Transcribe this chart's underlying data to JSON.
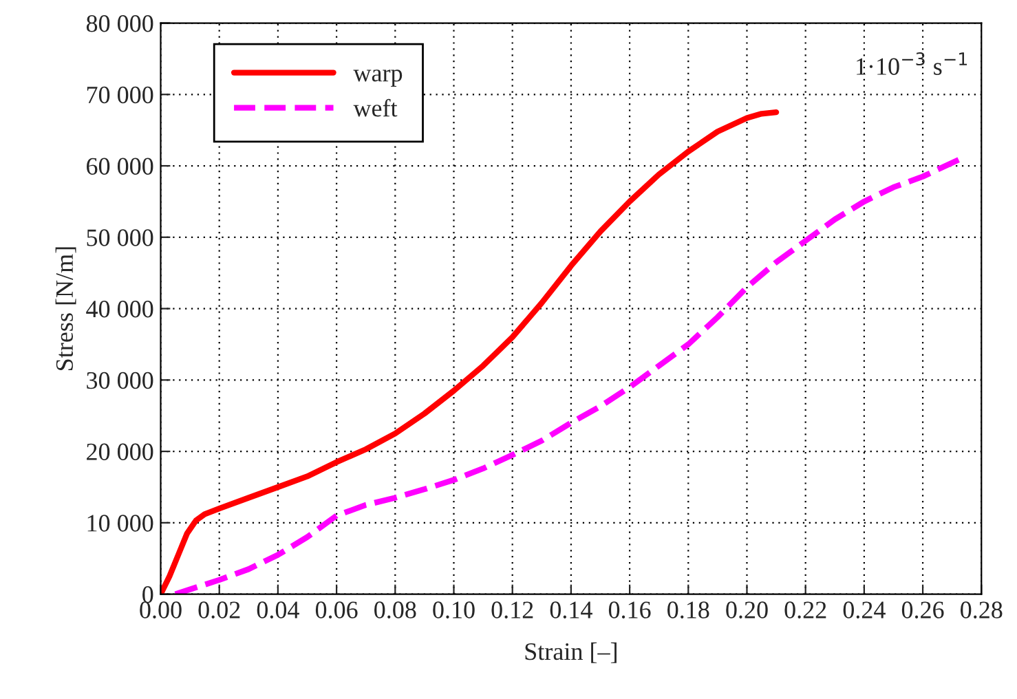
{
  "chart_data": {
    "type": "line",
    "xlabel": "Strain [–]",
    "ylabel": "Stress [N/m]",
    "annotations": [
      "1·10$^{−3}$ s$^{−1}$"
    ],
    "series": [
      {
        "name": "warp",
        "color": "#ff0000",
        "line_style": "solid",
        "x": [
          0,
          0.003,
          0.006,
          0.009,
          0.012,
          0.015,
          0.02,
          0.03,
          0.04,
          0.05,
          0.06,
          0.07,
          0.08,
          0.09,
          0.1,
          0.11,
          0.12,
          0.13,
          0.14,
          0.15,
          0.16,
          0.17,
          0.18,
          0.19,
          0.2,
          0.205,
          0.21
        ],
        "values": [
          0,
          2500,
          5500,
          8500,
          10300,
          11200,
          12000,
          13500,
          15000,
          16500,
          18500,
          20300,
          22500,
          25300,
          28500,
          32000,
          36000,
          40800,
          46000,
          50800,
          55000,
          58800,
          62000,
          64800,
          66700,
          67300,
          67500
        ]
      },
      {
        "name": "weft",
        "color": "#ff00ff",
        "line_style": "dashed",
        "x": [
          0.005,
          0.02,
          0.03,
          0.04,
          0.05,
          0.06,
          0.07,
          0.08,
          0.09,
          0.1,
          0.11,
          0.12,
          0.13,
          0.14,
          0.15,
          0.16,
          0.17,
          0.18,
          0.19,
          0.2,
          0.21,
          0.22,
          0.23,
          0.24,
          0.25,
          0.26,
          0.273
        ],
        "values": [
          0,
          2000,
          3500,
          5500,
          8000,
          11000,
          12500,
          13500,
          14700,
          16000,
          17600,
          19500,
          21500,
          24000,
          26300,
          29000,
          32000,
          35000,
          38800,
          43000,
          46500,
          49500,
          52500,
          55000,
          57000,
          58500,
          61000
        ]
      }
    ],
    "xlim": [
      0,
      0.28
    ],
    "ylim": [
      0,
      80000
    ],
    "xticks": [
      {
        "value": 0,
        "label": "0.00"
      },
      {
        "value": 0.02,
        "label": "0.02"
      },
      {
        "value": 0.04,
        "label": "0.04"
      },
      {
        "value": 0.06,
        "label": "0.06"
      },
      {
        "value": 0.08,
        "label": "0.08"
      },
      {
        "value": 0.1,
        "label": "0.10"
      },
      {
        "value": 0.12,
        "label": "0.12"
      },
      {
        "value": 0.14,
        "label": "0.14"
      },
      {
        "value": 0.16,
        "label": "0.16"
      },
      {
        "value": 0.18,
        "label": "0.18"
      },
      {
        "value": 0.2,
        "label": "0.20"
      },
      {
        "value": 0.22,
        "label": "0.22"
      },
      {
        "value": 0.24,
        "label": "0.24"
      },
      {
        "value": 0.26,
        "label": "0.26"
      },
      {
        "value": 0.28,
        "label": "0.28"
      }
    ],
    "yticks": [
      0,
      {
        "value": 10000,
        "label": "10 000"
      },
      {
        "value": 20000,
        "label": "20 000"
      },
      {
        "value": 30000,
        "label": "30 000"
      },
      {
        "value": 40000,
        "label": "40 000"
      },
      {
        "value": 50000,
        "label": "50 000"
      },
      {
        "value": 60000,
        "label": "60 000"
      },
      {
        "value": 70000,
        "label": "70 000"
      },
      {
        "value": 80000,
        "label": "80 000"
      }
    ],
    "grid": true,
    "legend": "top left",
    "marker": "none"
  }
}
